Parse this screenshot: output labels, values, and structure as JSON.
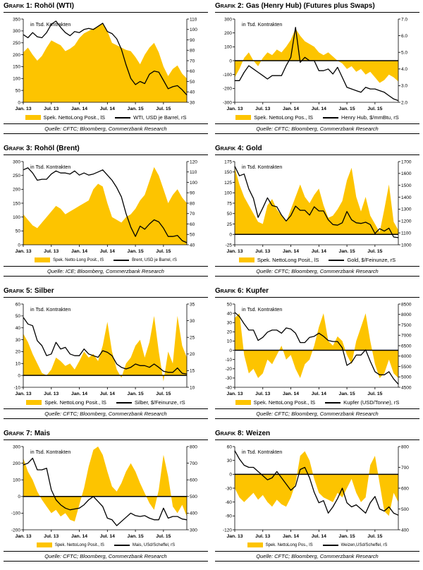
{
  "colors": {
    "area": "#FDC400",
    "line": "#000000",
    "axis": "#000000"
  },
  "chart_data": [
    {
      "type": "area+line",
      "title_prefix": "Grafik 1:",
      "title": "Rohöl (WTI)",
      "annotation": "in Tsd. Kontrakten",
      "x_tick_labels": [
        "Jan. 13",
        "Jul. 13",
        "Jan. 14",
        "Jul. 14",
        "Jan. 15",
        "Jul. 15"
      ],
      "x_tick_indices": [
        0,
        6,
        12,
        18,
        24,
        30
      ],
      "left_axis_ticks": [
        "0",
        "50",
        "100",
        "150",
        "200",
        "250",
        "300",
        "350"
      ],
      "right_axis_ticks": [
        "30",
        "40",
        "50",
        "60",
        "70",
        "80",
        "90",
        "100",
        "110"
      ],
      "area_series_name": "Spek. NettoLong Posit., lS",
      "area_values": [
        210,
        230,
        200,
        175,
        195,
        230,
        260,
        250,
        240,
        215,
        225,
        240,
        270,
        290,
        300,
        310,
        320,
        330,
        300,
        250,
        240,
        230,
        220,
        215,
        190,
        160,
        200,
        230,
        250,
        210,
        150,
        110,
        140,
        155,
        120,
        100
      ],
      "line_series_name": "WTI, USD je Barrel, rS",
      "line_values": [
        95,
        92,
        97,
        93,
        92,
        97,
        105,
        108,
        102,
        97,
        94,
        98,
        97,
        100,
        101,
        100,
        103,
        106,
        98,
        96,
        91,
        81,
        66,
        53,
        47,
        50,
        48,
        57,
        60,
        59,
        51,
        43,
        45,
        46,
        42,
        37
      ],
      "source": "Quelle: CFTC; Bloomberg, Commerzbank Research"
    },
    {
      "type": "area+line",
      "title_prefix": "Grafik 2:",
      "title": "Gas (Henry Hub) (Futures plus Swaps)",
      "annotation": "in Tsd. Kontrakten",
      "x_tick_labels": [
        "Jan. 13",
        "Jul. 13",
        "Jan. 14",
        "Jul. 14",
        "Jan. 15",
        "Jul. 15"
      ],
      "x_tick_indices": [
        0,
        6,
        12,
        18,
        24,
        30
      ],
      "left_axis_ticks": [
        "-300",
        "-200",
        "-100",
        "0",
        "100",
        "200",
        "300"
      ],
      "right_axis_ticks": [
        "2.0",
        "3.0",
        "4.0",
        "5.0",
        "6.0",
        "7.0"
      ],
      "area_series_name": "Spek. NettoLong Pos., lS",
      "area_values": [
        -120,
        -60,
        20,
        60,
        0,
        -40,
        20,
        60,
        40,
        80,
        60,
        100,
        150,
        230,
        180,
        140,
        120,
        100,
        60,
        40,
        60,
        30,
        0,
        -20,
        -60,
        -40,
        -80,
        -60,
        -100,
        -80,
        -120,
        -160,
        -140,
        -100,
        -120,
        -150
      ],
      "line_series_name": "Henry Hub, $/mmBtu, rS",
      "line_values": [
        3.3,
        3.3,
        3.8,
        4.2,
        4.0,
        3.8,
        3.6,
        3.4,
        3.6,
        3.6,
        3.6,
        4.2,
        4.7,
        6.5,
        4.4,
        4.7,
        4.5,
        4.5,
        3.9,
        3.9,
        4.0,
        3.7,
        4.1,
        3.5,
        2.9,
        2.8,
        2.7,
        2.6,
        2.9,
        2.8,
        2.8,
        2.7,
        2.6,
        2.4,
        2.2,
        2.1
      ],
      "source": "Quelle: CFTC; Bloomberg, Commerzbank Research"
    },
    {
      "type": "area+line",
      "title_prefix": "Grafik 3:",
      "title": "Rohöl (Brent)",
      "annotation": "in Tsd. Kontrakten",
      "x_tick_labels": [
        "Jan. 13",
        "Jul. 13",
        "Jan. 14",
        "Jul. 14",
        "Jan. 15",
        "Jul. 15"
      ],
      "x_tick_indices": [
        0,
        6,
        12,
        18,
        24,
        30
      ],
      "left_axis_ticks": [
        "0",
        "50",
        "100",
        "150",
        "200",
        "250",
        "300"
      ],
      "right_axis_ticks": [
        "40",
        "50",
        "60",
        "70",
        "80",
        "90",
        "100",
        "110",
        "120"
      ],
      "area_series_name": "Spek. Netto-Long Posit., lS",
      "area_values": [
        110,
        90,
        70,
        60,
        80,
        100,
        120,
        140,
        130,
        110,
        120,
        130,
        140,
        150,
        160,
        200,
        220,
        210,
        150,
        100,
        90,
        80,
        100,
        110,
        130,
        160,
        180,
        230,
        280,
        250,
        200,
        150,
        180,
        200,
        170,
        150
      ],
      "line_series_name": "Brent, USD je Barrel, rS",
      "line_values": [
        112,
        114,
        109,
        102,
        103,
        103,
        108,
        111,
        109,
        109,
        108,
        111,
        107,
        109,
        107,
        108,
        110,
        112,
        107,
        102,
        95,
        86,
        70,
        57,
        48,
        58,
        55,
        60,
        64,
        62,
        56,
        48,
        48,
        49,
        44,
        42
      ],
      "source": "Quelle: ICE; Bloomberg, Commerzbank Research"
    },
    {
      "type": "area+line",
      "title_prefix": "Grafik 4:",
      "title": "Gold",
      "annotation": "in Tsd. Kontrakten",
      "x_tick_labels": [
        "Jan. 13",
        "Jul. 13",
        "Jan. 14",
        "Jul. 14",
        "Jan. 15",
        "Jul. 15"
      ],
      "x_tick_indices": [
        0,
        6,
        12,
        18,
        24,
        30
      ],
      "left_axis_ticks": [
        "-25",
        "0",
        "25",
        "50",
        "75",
        "100",
        "125",
        "150",
        "175"
      ],
      "right_axis_ticks": [
        "1000",
        "1100",
        "1200",
        "1300",
        "1400",
        "1500",
        "1600",
        "1700"
      ],
      "area_series_name": "Spek. NettoLong Posit., lS",
      "area_values": [
        160,
        120,
        90,
        70,
        50,
        30,
        25,
        70,
        85,
        60,
        45,
        30,
        60,
        90,
        120,
        90,
        75,
        95,
        110,
        70,
        40,
        45,
        60,
        80,
        130,
        160,
        90,
        55,
        90,
        45,
        25,
        5,
        60,
        120,
        30,
        10
      ],
      "line_series_name": "Gold, $/Feinunze, rS",
      "line_values": [
        1660,
        1580,
        1595,
        1470,
        1390,
        1230,
        1310,
        1395,
        1330,
        1320,
        1250,
        1200,
        1245,
        1325,
        1290,
        1290,
        1250,
        1320,
        1285,
        1285,
        1210,
        1170,
        1165,
        1185,
        1280,
        1210,
        1185,
        1180,
        1190,
        1170,
        1095,
        1135,
        1115,
        1140,
        1065,
        1060
      ],
      "source": "Quelle: CFTC; Bloomberg, Commerzbank Research"
    },
    {
      "type": "area+line",
      "title_prefix": "Grafik 5:",
      "title": "Silber",
      "annotation": "in Tsd. Kontrakten",
      "x_tick_labels": [
        "Jan. 13",
        "Jul. 13",
        "Jan. 14",
        "Jul. 14",
        "Jan. 15",
        "Jul. 15"
      ],
      "x_tick_indices": [
        0,
        6,
        12,
        18,
        24,
        30
      ],
      "left_axis_ticks": [
        "-10",
        "0",
        "10",
        "20",
        "30",
        "40",
        "50",
        "60"
      ],
      "right_axis_ticks": [
        "10",
        "15",
        "20",
        "25",
        "30",
        "35"
      ],
      "area_series_name": "Spek. NettoLong Posit., lS",
      "area_values": [
        35,
        28,
        18,
        10,
        2,
        0,
        5,
        15,
        12,
        8,
        10,
        5,
        12,
        20,
        15,
        18,
        12,
        25,
        45,
        20,
        5,
        -2,
        10,
        15,
        25,
        30,
        15,
        28,
        50,
        20,
        -5,
        20,
        10,
        50,
        25,
        15
      ],
      "line_series_name": "Silber, $/Feinunze, rS",
      "line_values": [
        31,
        29,
        28.5,
        24,
        22.5,
        19.5,
        20,
        23.5,
        21.5,
        22,
        20,
        19.5,
        19.5,
        21.5,
        20,
        19.5,
        19,
        21,
        20.5,
        19.5,
        17,
        16,
        15.5,
        16,
        17,
        16.5,
        16.5,
        16,
        17,
        16,
        14.8,
        14.5,
        14.5,
        15.8,
        14.2,
        14
      ],
      "source": "Quelle: CFTC; Bloomberg, Commerzbank Research"
    },
    {
      "type": "area+line",
      "title_prefix": "Grafik 6:",
      "title": "Kupfer",
      "annotation": "in Tsd. Kontrakten",
      "x_tick_labels": [
        "Jan. 13",
        "Jul. 13",
        "Jan. 14",
        "Jul. 14",
        "Jan. 15",
        "Jul. 15"
      ],
      "x_tick_indices": [
        0,
        6,
        12,
        18,
        24,
        30
      ],
      "left_axis_ticks": [
        "-40",
        "-30",
        "-20",
        "-10",
        "0",
        "10",
        "20",
        "30",
        "40",
        "50"
      ],
      "right_axis_ticks": [
        "4500",
        "5000",
        "5500",
        "6000",
        "6500",
        "7000",
        "7500",
        "8000",
        "8500"
      ],
      "area_series_name": "Spek. NettoLong Posit., lS",
      "area_values": [
        35,
        40,
        -5,
        -25,
        -20,
        -30,
        -25,
        -10,
        -15,
        -5,
        5,
        -10,
        -5,
        -20,
        -30,
        -15,
        -10,
        5,
        25,
        40,
        10,
        5,
        15,
        10,
        -5,
        -15,
        10,
        25,
        40,
        10,
        -15,
        -30,
        -25,
        -10,
        -25,
        -30
      ],
      "line_series_name": "Kupfer (USD/Tonne), rS",
      "line_values": [
        8100,
        7900,
        7550,
        7250,
        7250,
        6750,
        6900,
        7150,
        7250,
        7250,
        7100,
        7350,
        7300,
        7100,
        6650,
        6650,
        6900,
        6950,
        7100,
        6950,
        6750,
        6700,
        6700,
        6400,
        5550,
        5700,
        6050,
        6050,
        6300,
        5750,
        5250,
        5100,
        5100,
        5250,
        4900,
        4650
      ],
      "source": "Quelle: CFTC; Bloomberg, Commerzbank Research"
    },
    {
      "type": "area+line",
      "title_prefix": "Grafik 7:",
      "title": "Mais",
      "annotation": "in Tsd. Kontrakten",
      "x_tick_labels": [
        "Jan. 13",
        "Jul. 13",
        "Jan. 14",
        "Jul. 14",
        "Jan. 15",
        "Jul. 15"
      ],
      "x_tick_indices": [
        0,
        6,
        12,
        18,
        24,
        30
      ],
      "left_axis_ticks": [
        "-200",
        "-100",
        "0",
        "100",
        "200",
        "300"
      ],
      "right_axis_ticks": [
        "300",
        "400",
        "500",
        "600",
        "700",
        "800"
      ],
      "area_series_name": "Spek. NettoLong Posit., lS",
      "area_values": [
        230,
        150,
        100,
        30,
        -20,
        -60,
        -100,
        -80,
        -120,
        -100,
        -140,
        -150,
        -50,
        50,
        180,
        280,
        300,
        250,
        150,
        60,
        30,
        80,
        150,
        200,
        150,
        80,
        20,
        -40,
        -80,
        40,
        250,
        120,
        -60,
        -100,
        -50,
        -120
      ],
      "line_series_name": "Mais, USd/Scheffel, rS",
      "line_values": [
        690,
        700,
        730,
        660,
        660,
        670,
        540,
        480,
        450,
        430,
        420,
        425,
        430,
        450,
        480,
        500,
        470,
        440,
        370,
        360,
        325,
        350,
        375,
        400,
        385,
        380,
        385,
        370,
        360,
        360,
        430,
        370,
        380,
        380,
        365,
        360
      ],
      "source": "Quelle: CFTC; Bloomberg, Commerzbank Research"
    },
    {
      "type": "area+line",
      "title_prefix": "Grafik 8:",
      "title": "Weizen",
      "annotation": "in Tsd. Kontrakten",
      "x_tick_labels": [
        "Jan. 13",
        "Jul. 13",
        "Jan. 14",
        "Jul. 14",
        "Jan. 15",
        "Jul. 15"
      ],
      "x_tick_indices": [
        0,
        6,
        12,
        18,
        24,
        30
      ],
      "left_axis_ticks": [
        "-120",
        "-90",
        "-60",
        "-30",
        "0",
        "30",
        "60"
      ],
      "right_axis_ticks": [
        "400",
        "500",
        "600",
        "700",
        "800"
      ],
      "area_series_name": "Spek. NettoLong Pos., lS",
      "area_values": [
        -30,
        -50,
        -60,
        -50,
        -40,
        -55,
        -45,
        -60,
        -70,
        -55,
        -65,
        -70,
        -50,
        -20,
        40,
        50,
        30,
        -10,
        -40,
        -50,
        -55,
        -60,
        -40,
        -50,
        -30,
        -10,
        -40,
        -60,
        -50,
        20,
        40,
        -20,
        -80,
        -90,
        -40,
        -60
      ],
      "line_series_name": "Weizen,USd/Scheffel, rS",
      "line_values": [
        780,
        740,
        710,
        700,
        700,
        680,
        660,
        640,
        650,
        680,
        650,
        620,
        590,
        610,
        690,
        700,
        650,
        580,
        530,
        540,
        480,
        510,
        550,
        600,
        530,
        510,
        520,
        500,
        480,
        530,
        560,
        500,
        490,
        510,
        480,
        470
      ],
      "source": "Quelle: CFTC; Bloomberg, Commerzbank Research"
    }
  ]
}
